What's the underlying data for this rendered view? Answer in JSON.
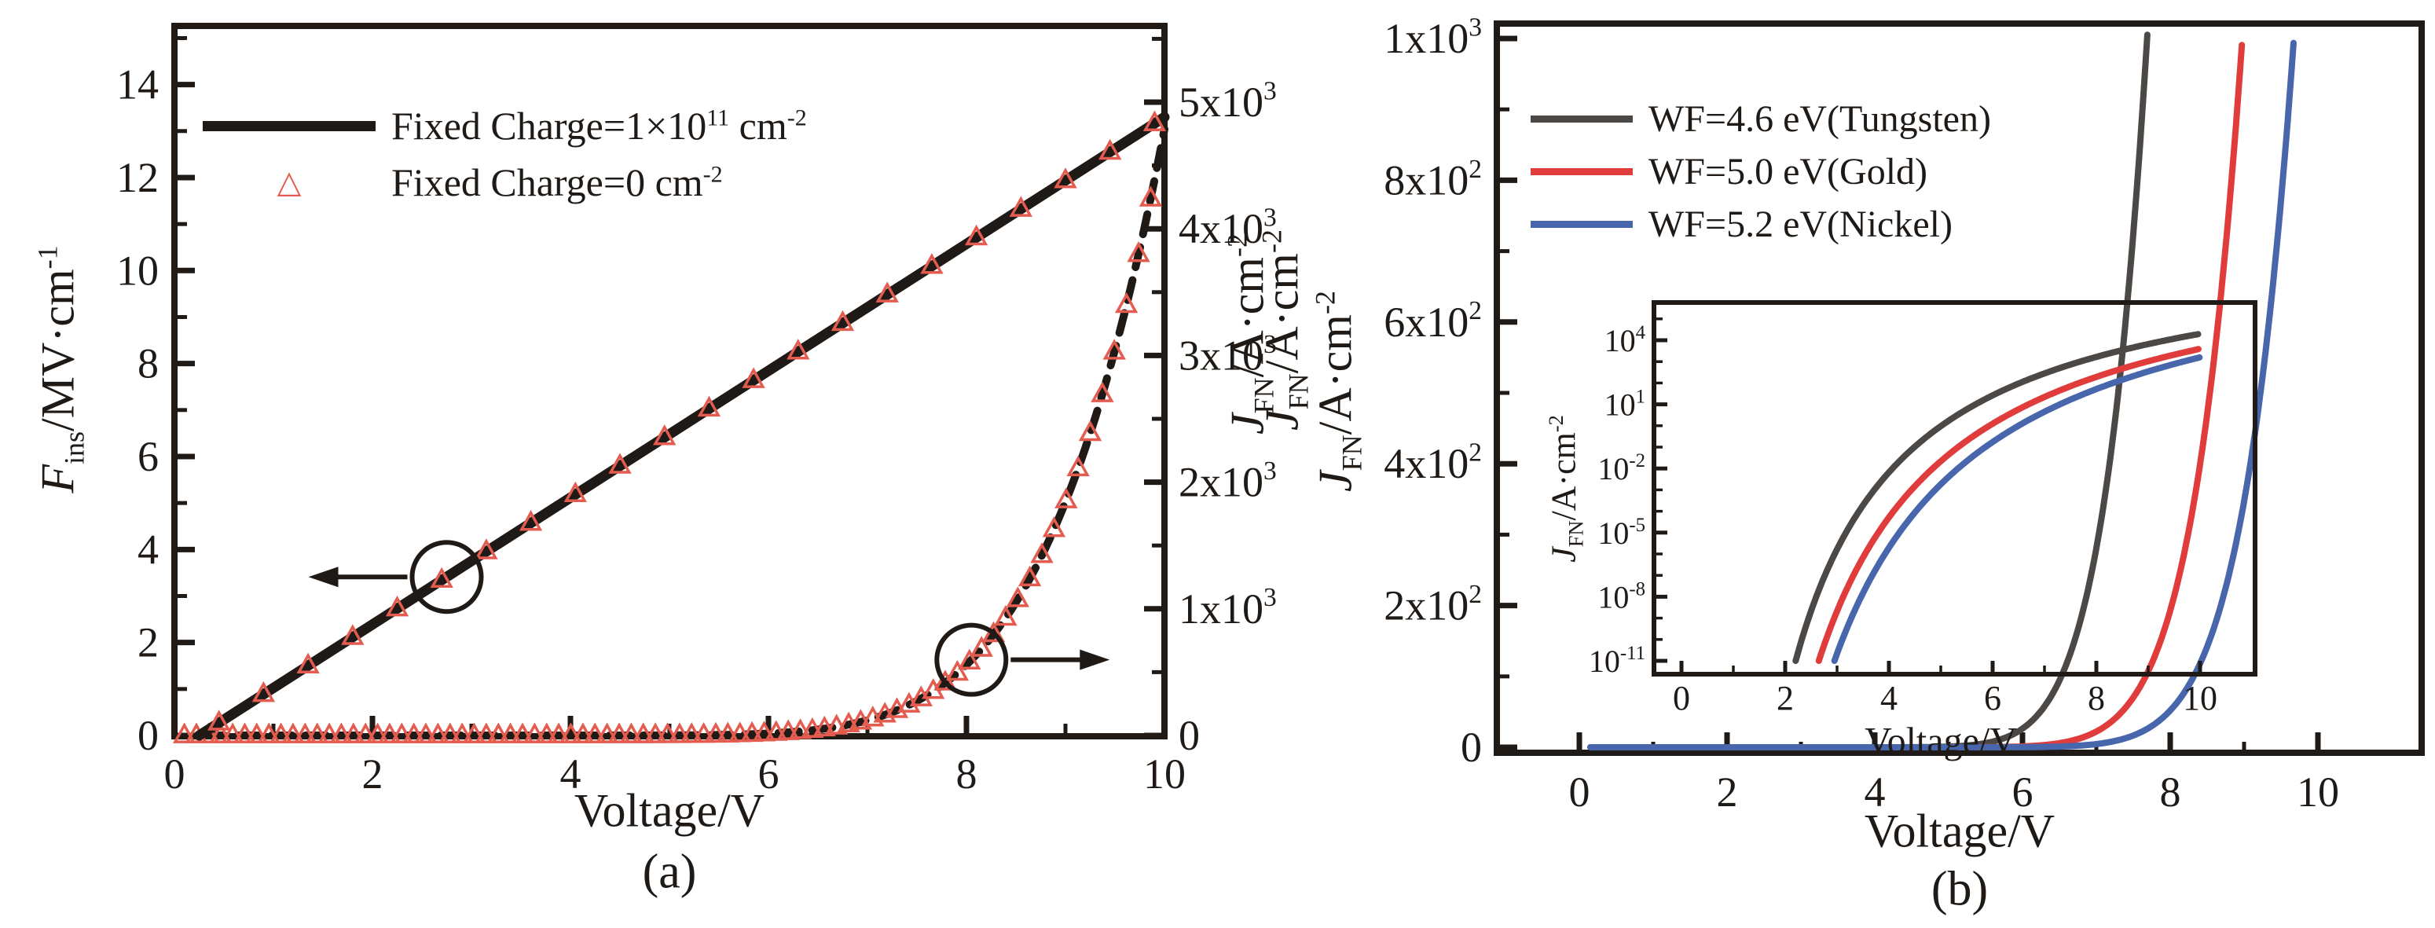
{
  "colors": {
    "ink": "#1f1a16",
    "marker_red": "#e45c50",
    "tungsten_gray": "#4c4846",
    "gold_red": "#e03c3c",
    "nickel_blue": "#4766ac",
    "background": "#ffffff"
  },
  "figure": {
    "panel_a": {
      "caption": "(a)",
      "xlabel": "Voltage/V",
      "ylabel_left_rich": [
        [
          "i",
          "F"
        ],
        [
          "sub",
          "ins"
        ],
        [
          "t",
          "/MV·cm"
        ],
        [
          "s",
          "-1"
        ]
      ],
      "ylabel_right_rich": [
        [
          "i",
          "J"
        ],
        [
          "sub",
          "FN"
        ],
        [
          "t",
          "/A·cm"
        ],
        [
          "s",
          "-2"
        ]
      ],
      "legend": [
        {
          "label_rich": [
            [
              "t",
              "Fixed Charge=1×10"
            ],
            [
              "s",
              "11"
            ],
            [
              "t",
              " cm"
            ],
            [
              "s",
              "-2"
            ]
          ],
          "marker": "solid-line",
          "color": "#1f1a16"
        },
        {
          "label_rich": [
            [
              "t",
              "Fixed Charge=0 cm"
            ],
            [
              "s",
              "-2"
            ]
          ],
          "marker": "open-triangle",
          "marker_char": "△",
          "color": "#e45c50"
        }
      ]
    },
    "panel_b": {
      "caption": "(b)",
      "xlabel": "Voltage/V",
      "ylabel_rich": [
        [
          "i",
          "J"
        ],
        [
          "sub",
          "FN"
        ],
        [
          "t",
          "/A·cm"
        ],
        [
          "s",
          "-2"
        ]
      ],
      "ylabel_rich_2": [
        [
          "i",
          "J"
        ],
        [
          "sub",
          "FN"
        ],
        [
          "t",
          "/A·cm"
        ],
        [
          "s",
          "-2"
        ]
      ],
      "legend": [
        {
          "label": "WF=4.6 eV(Tungsten)",
          "color": "#4c4846"
        },
        {
          "label": "WF=5.0 eV(Gold)",
          "color": "#e03c3c"
        },
        {
          "label": "WF=5.2 eV(Nickel)",
          "color": "#4766ac"
        }
      ],
      "inset": {
        "xlabel": "Voltage/V",
        "ylabel_rich": [
          [
            "i",
            "J"
          ],
          [
            "sub",
            "FN"
          ],
          [
            "t",
            "/A·cm"
          ],
          [
            "s",
            "-2"
          ]
        ]
      }
    }
  },
  "chart_data": [
    {
      "id": "panel-a",
      "type": "line",
      "xlabel": "Voltage/V",
      "x_axis": {
        "range": [
          0,
          10
        ],
        "major": [
          0,
          2,
          4,
          6,
          8,
          10
        ],
        "minor": [
          1,
          3,
          5,
          7,
          9
        ],
        "labels": [
          "0",
          "2",
          "4",
          "6",
          "8",
          "10"
        ]
      },
      "y_left": {
        "label": "F_ins/MV·cm^-1",
        "range": [
          0,
          15.3
        ],
        "major": [
          0,
          2,
          4,
          6,
          8,
          10,
          12,
          14
        ],
        "minor": [
          1,
          3,
          5,
          7,
          9,
          11,
          13,
          15
        ],
        "labels": [
          "0",
          "2",
          "4",
          "6",
          "8",
          "10",
          "12",
          "14"
        ]
      },
      "y_right": {
        "label": "J_FN/A·cm^-2",
        "range": [
          0,
          5600
        ],
        "major": [
          0,
          1000,
          2000,
          3000,
          4000,
          5000
        ],
        "minor": [
          500,
          1500,
          2500,
          3500,
          4500,
          5500
        ],
        "labels_rich": [
          [
            [
              "t",
              "0"
            ]
          ],
          [
            [
              "t",
              "1x10"
            ],
            [
              "s",
              "3"
            ]
          ],
          [
            [
              "t",
              "2x10"
            ],
            [
              "s",
              "3"
            ]
          ],
          [
            [
              "t",
              "3x10"
            ],
            [
              "s",
              "3"
            ]
          ],
          [
            [
              "t",
              "4x10"
            ],
            [
              "s",
              "3"
            ]
          ],
          [
            [
              "t",
              "5x10"
            ],
            [
              "s",
              "3"
            ]
          ]
        ]
      },
      "series": [
        {
          "name": "Fixed Charge=1×10^11 cm^-2 (F_ins)",
          "axis": "left",
          "style": "line",
          "color": "#1f1a16",
          "width": 13,
          "model": {
            "type": "linear",
            "x0": 0.25,
            "y0": 0,
            "x1": 10,
            "y1": 13.3
          },
          "x": [
            0.25,
            2,
            4,
            6,
            8,
            10
          ],
          "y": [
            0,
            2.39,
            5.12,
            7.84,
            10.57,
            13.3
          ]
        },
        {
          "name": "Fixed Charge=0 cm^-2 (F_ins)",
          "axis": "left",
          "style": "markers",
          "marker": "triangle",
          "color": "#e45c50",
          "marker_start": 0.45,
          "marker_step": 0.45,
          "model": {
            "type": "linear",
            "x0": 0.25,
            "y0": 0,
            "x1": 10,
            "y1": 13.3
          }
        },
        {
          "name": "Fixed Charge=1×10^11 cm^-2 (J_FN)",
          "axis": "right",
          "style": "dashed",
          "color": "#1f1a16",
          "width": 10,
          "dash": "26 17",
          "model": {
            "type": "fn",
            "c1": 7.41,
            "c2": 37.3
          },
          "x": [
            6,
            7,
            7.5,
            8,
            8.5,
            9,
            9.5,
            10
          ],
          "y": [
            16,
            120,
            310,
            560,
            1050,
            1850,
            3000,
            4800
          ]
        },
        {
          "name": "Fixed Charge=0 cm^-2 (J_FN)",
          "axis": "right",
          "style": "markers",
          "marker": "triangle",
          "color": "#e45c50",
          "marker_start": 0.1,
          "marker_step": 0.122,
          "model": {
            "type": "fn",
            "c1": 7.41,
            "c2": 37.3
          }
        }
      ],
      "annotations": [
        {
          "type": "circle-arrow",
          "v": 2.75,
          "on": "left-line",
          "dir": "left"
        },
        {
          "type": "circle-arrow",
          "v": 8.05,
          "on": "right-curve",
          "dir": "right"
        }
      ]
    },
    {
      "id": "panel-b",
      "type": "line",
      "xlabel": "Voltage/V",
      "x_axis": {
        "range": [
          -1.1,
          11.4
        ],
        "major": [
          0,
          2,
          4,
          6,
          8,
          10
        ],
        "minor": [
          1,
          3,
          5,
          7,
          9
        ],
        "labels": [
          "0",
          "2",
          "4",
          "6",
          "8",
          "10"
        ]
      },
      "y_axis": {
        "label": "J_FN/A·cm^-2",
        "range": [
          0,
          1021
        ],
        "major": [
          0,
          200,
          400,
          600,
          800,
          1000
        ],
        "minor": [
          100,
          300,
          500,
          700,
          900
        ],
        "labels_rich": [
          [
            [
              "t",
              "0"
            ]
          ],
          [
            [
              "t",
              "2x10"
            ],
            [
              "s",
              "2"
            ]
          ],
          [
            [
              "t",
              "4x10"
            ],
            [
              "s",
              "2"
            ]
          ],
          [
            [
              "t",
              "6x10"
            ],
            [
              "s",
              "2"
            ]
          ],
          [
            [
              "t",
              "8x10"
            ],
            [
              "s",
              "2"
            ]
          ],
          [
            [
              "t",
              "1x10"
            ],
            [
              "s",
              "3"
            ]
          ]
        ]
      },
      "series": [
        {
          "name": "WF=4.6 eV(Tungsten)",
          "color": "#4c4846",
          "width": 8,
          "model": {
            "type": "fn",
            "c1": 8.62,
            "c2": 43.2
          },
          "x": [
            5,
            6,
            6.5,
            7,
            7.35,
            7.68
          ],
          "y": [
            1,
            26,
            94,
            281,
            560,
            1010
          ]
        },
        {
          "name": "WF=5.0 eV(Gold)",
          "color": "#e03c3c",
          "width": 8,
          "model": {
            "type": "fn",
            "c1": 8.86,
            "c2": 52.6
          },
          "x": [
            6,
            7,
            8,
            8.5,
            9
          ],
          "y": [
            1.4,
            22,
            193,
            470,
            1037
          ]
        },
        {
          "name": "WF=5.2 eV(Nickel)",
          "color": "#4766ac",
          "width": 8,
          "model": {
            "type": "fn",
            "c1": 9.14,
            "c2": 59.4
          },
          "x": [
            7,
            8,
            9,
            9.68
          ],
          "y": [
            4,
            52,
            347,
            1010
          ]
        }
      ]
    },
    {
      "id": "panel-b-inset",
      "type": "line",
      "y_scale": "log",
      "xlabel": "Voltage/V",
      "x_axis": {
        "range": [
          -0.53,
          11.06
        ],
        "major": [
          0,
          2,
          4,
          6,
          8,
          10
        ],
        "minor": [
          1,
          3,
          5,
          7,
          9
        ],
        "labels": [
          "0",
          "2",
          "4",
          "6",
          "8",
          "10"
        ]
      },
      "y_axis": {
        "label": "J_FN/A·cm^-2",
        "log_range": [
          -11,
          5.76
        ],
        "major_exp": [
          4,
          1,
          -2,
          -5,
          -8,
          -11
        ],
        "labels_rich": [
          [
            [
              "t",
              "10"
            ],
            [
              "s",
              "4"
            ]
          ],
          [
            [
              "t",
              "10"
            ],
            [
              "s",
              "1"
            ]
          ],
          [
            [
              "t",
              "10"
            ],
            [
              "s",
              "-2"
            ]
          ],
          [
            [
              "t",
              "10"
            ],
            [
              "s",
              "-5"
            ]
          ],
          [
            [
              "t",
              "10"
            ],
            [
              "s",
              "-8"
            ]
          ],
          [
            [
              "t",
              "10"
            ],
            [
              "s",
              "-11"
            ]
          ]
        ]
      },
      "series": [
        {
          "name": "WF=4.6 eV(Tungsten)",
          "color": "#4c4846",
          "width": 8,
          "model": {
            "type": "fn",
            "c1": 8.62,
            "c2": 43.2
          },
          "x": [
            2.2,
            3,
            4,
            5,
            6,
            8,
            10
          ],
          "log10_y": [
            -11,
            -5.8,
            -2.2,
            0,
            1.4,
            3.2,
            4.3
          ]
        },
        {
          "name": "WF=5.0 eV(Gold)",
          "color": "#e03c3c",
          "width": 8,
          "model": {
            "type": "fn",
            "c1": 8.86,
            "c2": 52.6
          },
          "x": [
            2.65,
            3,
            4,
            5,
            6,
            8,
            10
          ],
          "log10_y": [
            -11,
            -8.7,
            -4.3,
            -1.7,
            0.1,
            2.3,
            3.6
          ]
        },
        {
          "name": "WF=5.2 eV(Nickel)",
          "color": "#4766ac",
          "width": 8,
          "model": {
            "type": "fn",
            "c1": 9.14,
            "c2": 59.4
          },
          "x": [
            2.95,
            4,
            5,
            6,
            8,
            10
          ],
          "log10_y": [
            -11,
            -5.7,
            -2.7,
            -0.76,
            1.7,
            3.2
          ]
        }
      ]
    }
  ]
}
